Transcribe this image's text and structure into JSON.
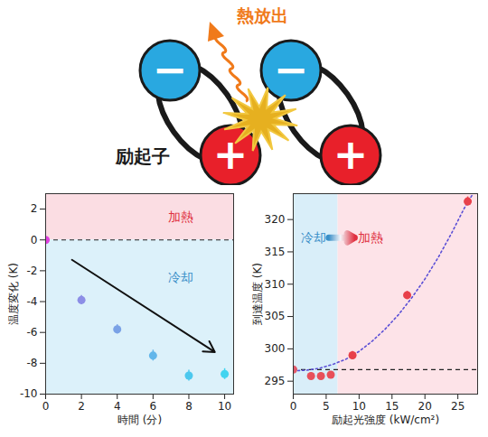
{
  "diagram": {
    "heat_label": "熱放出",
    "exciton_label": "励起子",
    "negative": "−",
    "positive": "+"
  },
  "chart_data": [
    {
      "type": "scatter",
      "x_label": "時間 (分)",
      "y_label": "温度変化 (K)",
      "xlim": [
        0,
        10.5
      ],
      "xticks": [
        0,
        2,
        4,
        6,
        8,
        10
      ],
      "ylim": [
        -10,
        3
      ],
      "yticks": [
        -10,
        -8,
        -6,
        -4,
        -2,
        0,
        2
      ],
      "reference_y": 0,
      "regions": [
        {
          "label": "加熱",
          "y1": 0,
          "y2": 3,
          "color": "#fbdde3",
          "label_color": "#e03040"
        },
        {
          "label": "冷却",
          "y1": -10,
          "y2": 0,
          "color": "#dcf1fa",
          "label_color": "#3a8fc8"
        }
      ],
      "series": [
        {
          "type": "scatter",
          "marker": "circle",
          "x": [
            0,
            2,
            4,
            6,
            8,
            10
          ],
          "values": [
            0,
            -3.9,
            -5.8,
            -7.5,
            -8.8,
            -8.7
          ],
          "errors": [
            0,
            0.3,
            0.3,
            0.35,
            0.35,
            0.35
          ],
          "colors": [
            "#e040e0",
            "#8c8ee6",
            "#7aa2e6",
            "#62b6ea",
            "#4cc8ee",
            "#40d4f0"
          ]
        }
      ]
    },
    {
      "type": "scatter",
      "x_label": "励起光強度 (kW/cm²)",
      "y_label": "到達温度 (K)",
      "xlim": [
        0,
        28
      ],
      "xticks": [
        0,
        5,
        10,
        15,
        20,
        25
      ],
      "ylim": [
        293,
        324
      ],
      "yticks": [
        295,
        300,
        305,
        310,
        315,
        320
      ],
      "reference_y": 296.8,
      "regions": [
        {
          "label": "冷却",
          "x1": 0,
          "x2": 6.8,
          "color": "#d9eef9",
          "label_color": "#3a8fc8"
        },
        {
          "label": "加熱",
          "x1": 6.8,
          "x2": 28,
          "color": "#fde3e8",
          "label_color": "#e03040"
        }
      ],
      "series": [
        {
          "type": "line",
          "line_style": "dotted",
          "color": "#5b4fd6",
          "x": [
            0,
            2,
            4,
            6,
            8,
            10,
            12,
            14,
            16,
            18,
            20,
            22,
            24,
            26,
            27.3
          ],
          "values": [
            296.6,
            296.7,
            297,
            297.6,
            298.4,
            299.6,
            301.2,
            303.1,
            305.3,
            307.9,
            310.8,
            314.1,
            317.8,
            321.8,
            324
          ]
        },
        {
          "type": "scatter",
          "marker": "circle",
          "x": [
            0,
            2.7,
            4.2,
            5.7,
            9,
            17.3,
            26.5
          ],
          "values": [
            296.8,
            295.8,
            295.8,
            296,
            299,
            308.3,
            322.8
          ],
          "errors": [
            0.5,
            0.5,
            0.5,
            0.5,
            0.6,
            0.6,
            0.7
          ],
          "colors": [
            "#e05a6a",
            "#e8505a",
            "#e8505a",
            "#e8505a",
            "#e8404a",
            "#e8404a",
            "#e8404a"
          ]
        }
      ]
    }
  ]
}
